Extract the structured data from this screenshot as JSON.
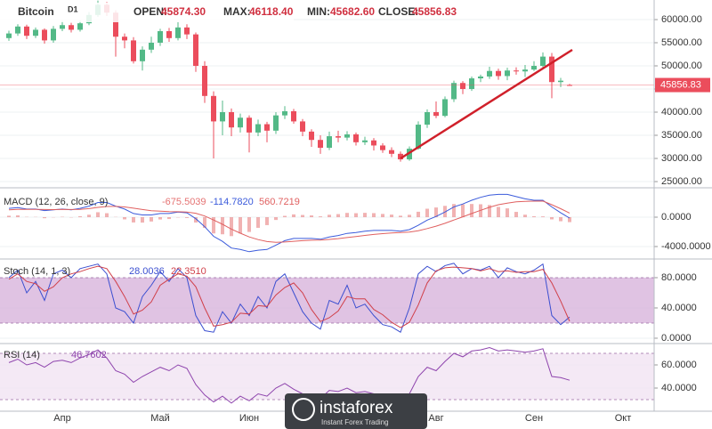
{
  "chart_data": [
    {
      "type": "candlestick",
      "title": "Bitcoin",
      "timeframe": "D1",
      "ohlc_header": [
        {
          "label": "OPEN:",
          "value": "45874.30"
        },
        {
          "label": "MAX:",
          "value": "46118.40"
        },
        {
          "label": "MIN:",
          "value": "45682.60"
        },
        {
          "label": "CLOSE:",
          "value": "45856.83"
        }
      ],
      "last_price_label": "45856.83",
      "up_color": "#53b987",
      "down_color": "#eb4d5c",
      "grid": true,
      "categories": [
        null,
        null,
        null,
        null,
        null,
        null,
        "Апр",
        null,
        null,
        null,
        null,
        null,
        null,
        null,
        null,
        null,
        null,
        "Май",
        null,
        null,
        null,
        null,
        null,
        null,
        null,
        null,
        null,
        "Июн",
        null,
        null,
        null,
        null,
        null,
        null,
        null,
        null,
        null,
        null,
        null,
        null,
        null,
        null,
        null,
        null,
        null,
        null,
        null,
        null,
        "Авг",
        null,
        null,
        null,
        null,
        null,
        null,
        null,
        null,
        null,
        null,
        "Сен",
        null,
        null,
        null,
        null,
        null,
        null,
        null,
        null,
        null,
        "Окт"
      ],
      "open": [
        56000,
        57000,
        58500,
        56500,
        57800,
        55500,
        58000,
        58800,
        57800,
        59200,
        61000,
        63200,
        61500,
        56300,
        55500,
        51000,
        53500,
        55000,
        57500,
        56000,
        58300,
        56800,
        50000,
        43500,
        38000,
        40000,
        36700,
        38800,
        35600,
        37400,
        36000,
        39300,
        40200,
        38000,
        35800,
        34000,
        32300,
        34800,
        34500,
        35200,
        33500,
        33900,
        32800,
        31800,
        31000,
        29800,
        32100,
        37300,
        40000,
        39200,
        42800,
        46300,
        45000,
        47300,
        47700,
        48900,
        47800,
        49000,
        48800,
        49200,
        50000,
        52000,
        46500,
        45874.3,
        null,
        null,
        null,
        null,
        null,
        null
      ],
      "high": [
        57600,
        59000,
        58900,
        58300,
        58100,
        58600,
        59700,
        59300,
        59800,
        61600,
        64100,
        63800,
        62000,
        57000,
        56200,
        54200,
        56300,
        58000,
        58200,
        59500,
        59000,
        57200,
        51000,
        44500,
        42500,
        40800,
        39700,
        39300,
        38400,
        37900,
        40000,
        41300,
        40700,
        38500,
        36300,
        35000,
        35800,
        36000,
        35900,
        35600,
        34700,
        34400,
        33300,
        32400,
        31500,
        32600,
        38000,
        40600,
        42300,
        43400,
        46800,
        46700,
        47700,
        48100,
        49800,
        49400,
        49600,
        49700,
        50200,
        51000,
        52900,
        52800,
        47400,
        46118.4,
        null,
        null,
        null,
        null,
        null,
        null
      ],
      "low": [
        55400,
        56500,
        55800,
        56000,
        54800,
        55000,
        57500,
        57200,
        57400,
        58800,
        60600,
        60800,
        52000,
        53800,
        50500,
        49000,
        52800,
        54300,
        55200,
        55500,
        55800,
        48700,
        42000,
        30000,
        35000,
        34800,
        35600,
        31300,
        34800,
        33500,
        35300,
        38500,
        37500,
        34800,
        32500,
        31000,
        31800,
        33500,
        33900,
        32800,
        32900,
        31700,
        31200,
        30300,
        29300,
        29500,
        31900,
        36600,
        38700,
        38900,
        42200,
        43900,
        44600,
        46500,
        47200,
        47000,
        46900,
        48100,
        47600,
        48900,
        49700,
        43000,
        45400,
        45682.6,
        null,
        null,
        null,
        null,
        null,
        null
      ],
      "close": [
        57000,
        58500,
        56500,
        57800,
        55500,
        58000,
        58800,
        57800,
        59200,
        61000,
        63200,
        61500,
        56300,
        55500,
        51000,
        53500,
        55000,
        57500,
        56000,
        58300,
        56800,
        50000,
        43500,
        38000,
        40000,
        36700,
        38800,
        35600,
        37400,
        36000,
        39300,
        40200,
        38000,
        35800,
        34000,
        32300,
        34800,
        34500,
        35200,
        33500,
        33900,
        32800,
        31800,
        31000,
        29800,
        32100,
        37300,
        40000,
        39200,
        42800,
        46300,
        45000,
        47300,
        47700,
        48900,
        47800,
        49000,
        48800,
        49200,
        50000,
        52000,
        46500,
        46800,
        45856.83,
        null,
        null,
        null,
        null,
        null,
        null
      ],
      "ylim": [
        23850,
        64230
      ],
      "yticks": [
        {
          "value": 25000,
          "label": "25000.00"
        },
        {
          "value": 30000,
          "label": "30000.00"
        },
        {
          "value": 35000,
          "label": "35000.00"
        },
        {
          "value": 40000,
          "label": "40000.00"
        },
        {
          "value": 45000,
          "label": "45000.00"
        },
        {
          "value": 50000,
          "label": "50000.00"
        },
        {
          "value": 55000,
          "label": "55000.00"
        },
        {
          "value": 60000,
          "label": "60000.00"
        }
      ]
    },
    {
      "type": "indicator",
      "title": "MACD (12, 26, close, 9)",
      "grid": true,
      "series": [
        {
          "style": "histogram",
          "color": "#e57373",
          "header": "-675.5039",
          "values": [
            200,
            250,
            40,
            30,
            -140,
            -30,
            50,
            -40,
            130,
            340,
            670,
            540,
            30,
            -300,
            -720,
            -740,
            -590,
            -310,
            -250,
            -40,
            -110,
            -730,
            -1460,
            -2210,
            -2330,
            -2580,
            -2220,
            -2010,
            -1450,
            -1080,
            -380,
            180,
            380,
            300,
            240,
            110,
            330,
            420,
            580,
            540,
            590,
            550,
            440,
            350,
            200,
            320,
            740,
            1150,
            1320,
            1540,
            1790,
            1750,
            1800,
            1760,
            1650,
            1400,
            1200,
            720,
            340,
            120,
            100,
            -300,
            -550,
            -675.5039,
            null,
            null,
            null,
            null,
            null,
            null
          ]
        },
        {
          "style": "line",
          "color": "#3b5bdb",
          "header": "-114.7820",
          "values": [
            1200,
            1300,
            1100,
            1100,
            900,
            1000,
            1100,
            1000,
            1200,
            1500,
            2000,
            2000,
            1500,
            1100,
            500,
            300,
            300,
            500,
            500,
            700,
            600,
            -200,
            -1300,
            -2600,
            -3300,
            -4200,
            -4400,
            -4700,
            -4500,
            -4400,
            -3800,
            -3200,
            -2900,
            -2900,
            -2900,
            -3000,
            -2700,
            -2500,
            -2200,
            -2100,
            -1900,
            -1800,
            -1800,
            -1800,
            -1900,
            -1700,
            -1100,
            -400,
            100,
            700,
            1400,
            1800,
            2300,
            2700,
            3000,
            3100,
            3100,
            2800,
            2500,
            2300,
            2300,
            1400,
            600,
            -114.782,
            null,
            null,
            null,
            null,
            null,
            null
          ]
        },
        {
          "style": "line",
          "color": "#e06060",
          "header": "560.7219",
          "values": [
            1000,
            1050,
            1060,
            1070,
            1040,
            1030,
            1050,
            1040,
            1070,
            1160,
            1330,
            1460,
            1470,
            1400,
            1220,
            1040,
            890,
            810,
            750,
            740,
            710,
            530,
            160,
            -390,
            -970,
            -1620,
            -2180,
            -2690,
            -3050,
            -3320,
            -3420,
            -3380,
            -3280,
            -3200,
            -3140,
            -3110,
            -3030,
            -2920,
            -2780,
            -2640,
            -2490,
            -2350,
            -2240,
            -2150,
            -2100,
            -2020,
            -1840,
            -1550,
            -1220,
            -840,
            -390,
            50,
            500,
            940,
            1350,
            1700,
            1900,
            2080,
            2160,
            2180,
            2200,
            1700,
            1150,
            560.7219,
            null,
            null,
            null,
            null,
            null,
            null
          ]
        }
      ],
      "ylim": [
        -5575,
        3880
      ],
      "yticks": [
        {
          "value": -4000,
          "label": "-4000.0000"
        },
        {
          "value": 0,
          "label": "0.0000"
        }
      ]
    },
    {
      "type": "indicator",
      "title": "Stoch (14, 1, 3)",
      "grid": true,
      "band": [
        20,
        80
      ],
      "band_color": "#d8b4dc",
      "series": [
        {
          "style": "line",
          "color": "#3b4fd0",
          "header": "28.0036",
          "values": [
            80,
            90,
            60,
            75,
            50,
            85,
            90,
            80,
            92,
            95,
            98,
            85,
            40,
            35,
            20,
            55,
            70,
            88,
            75,
            92,
            80,
            30,
            10,
            8,
            35,
            20,
            45,
            30,
            55,
            40,
            75,
            85,
            60,
            35,
            20,
            12,
            50,
            45,
            70,
            40,
            45,
            30,
            18,
            15,
            8,
            40,
            85,
            95,
            88,
            96,
            99,
            85,
            92,
            90,
            95,
            80,
            93,
            88,
            85,
            90,
            98,
            30,
            18,
            28.0036,
            null,
            null,
            null,
            null,
            null,
            null
          ]
        },
        {
          "style": "line",
          "color": "#d0404a",
          "header": "22.3510",
          "values": [
            78,
            85,
            75,
            72,
            62,
            68,
            80,
            85,
            88,
            92,
            95,
            92,
            75,
            55,
            32,
            37,
            48,
            70,
            78,
            85,
            82,
            68,
            40,
            16,
            18,
            21,
            33,
            32,
            43,
            42,
            57,
            67,
            73,
            60,
            38,
            22,
            27,
            36,
            55,
            52,
            52,
            38,
            31,
            21,
            14,
            21,
            44,
            73,
            89,
            93,
            94,
            93,
            92,
            89,
            92,
            88,
            89,
            87,
            88,
            88,
            91,
            73,
            49,
            22.351,
            null,
            null,
            null,
            null,
            null,
            null
          ]
        }
      ],
      "ylim": [
        -5.9,
        103.5
      ],
      "yticks": [
        {
          "value": 0,
          "label": "0.0000"
        },
        {
          "value": 40,
          "label": "40.0000"
        },
        {
          "value": 80,
          "label": "80.0000"
        }
      ]
    },
    {
      "type": "indicator",
      "title": "RSI (14)",
      "grid": true,
      "band": [
        30,
        70
      ],
      "band_color": "#f1e3f3",
      "series": [
        {
          "style": "line",
          "color": "#8e44ad",
          "header": "46.7602",
          "values": [
            62,
            65,
            60,
            62,
            58,
            63,
            64,
            62,
            66,
            69,
            73,
            66,
            55,
            52,
            45,
            50,
            54,
            58,
            55,
            60,
            57,
            43,
            34,
            28,
            33,
            27,
            33,
            29,
            35,
            33,
            40,
            44,
            39,
            35,
            33,
            31,
            38,
            37,
            40,
            36,
            37,
            35,
            33,
            31,
            29,
            35,
            50,
            58,
            55,
            63,
            70,
            67,
            72,
            73,
            75,
            72,
            73,
            72,
            71,
            72,
            74,
            50,
            49,
            46.7602,
            null,
            null,
            null,
            null,
            null,
            null
          ]
        }
      ],
      "ylim": [
        20,
        77.7
      ],
      "yticks": [
        {
          "value": 40,
          "label": "40.0000"
        },
        {
          "value": 60,
          "label": "60.0000"
        }
      ]
    }
  ],
  "logo": {
    "brand": "instaforex",
    "tagline": "Instant Forex Trading"
  }
}
